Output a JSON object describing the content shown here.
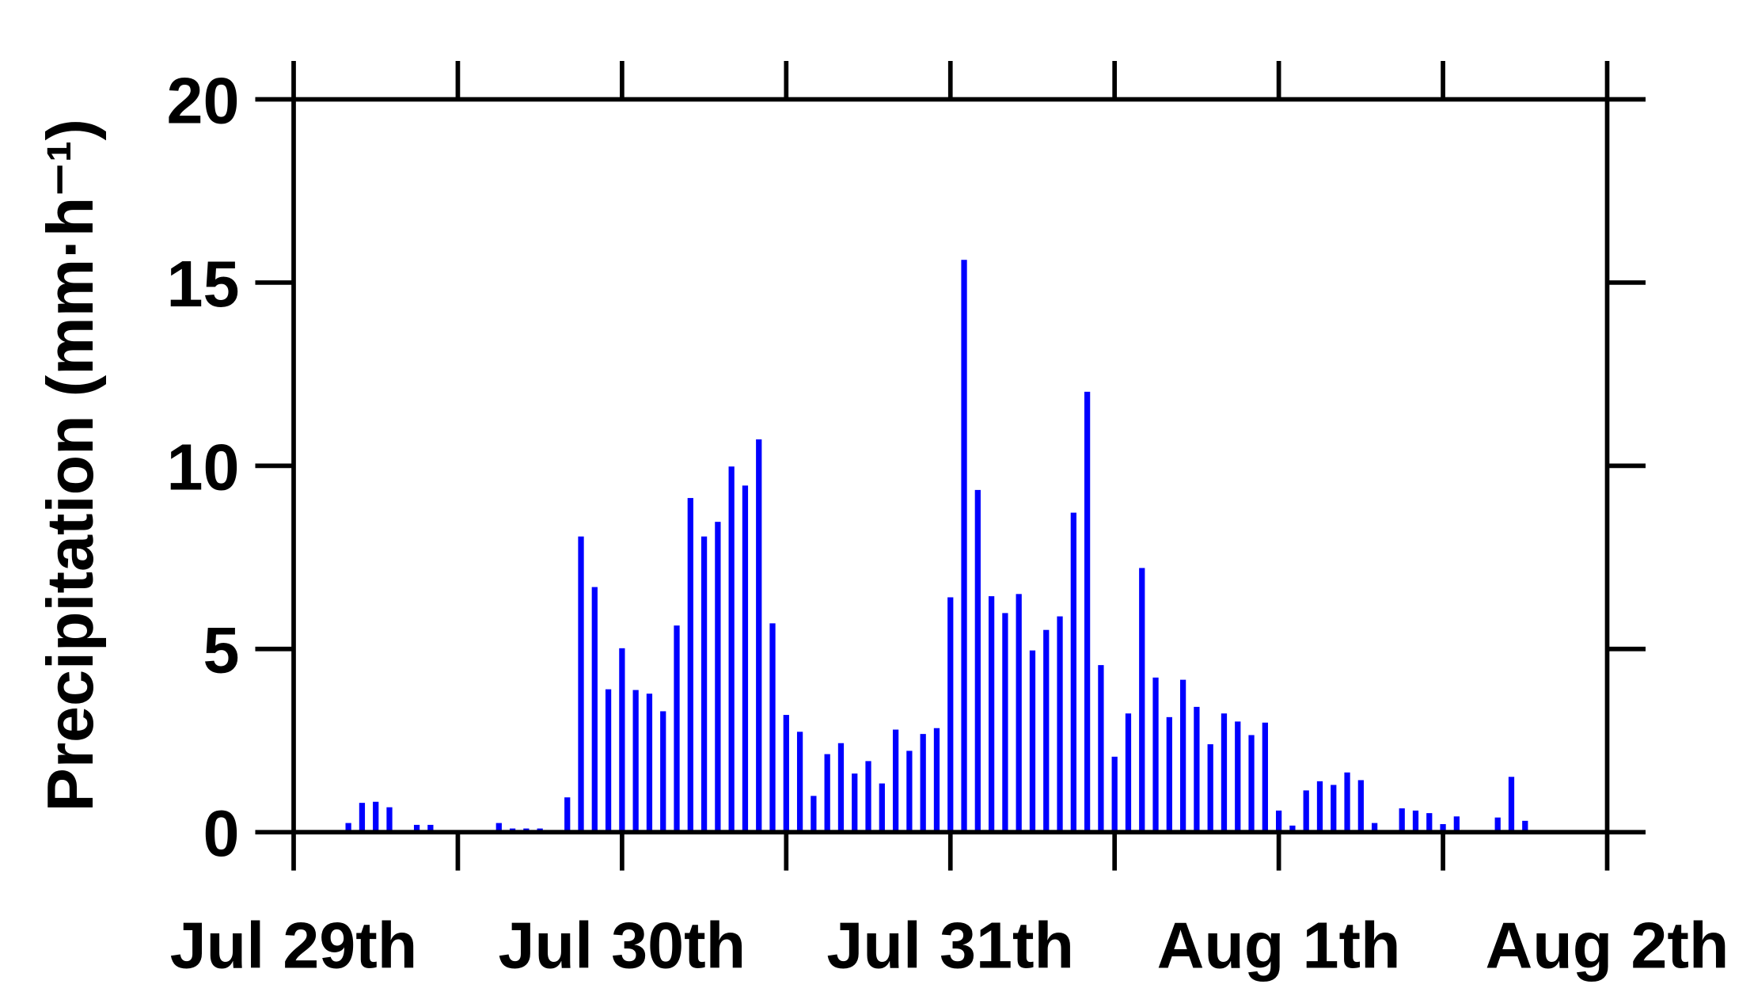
{
  "chart_data": {
    "type": "bar",
    "ylabel": "Precipitation (mm·h⁻¹)",
    "color": "#0000ff",
    "x": [
      4,
      5,
      6,
      7,
      9,
      10,
      13,
      15,
      16,
      17,
      18,
      19,
      20,
      21,
      22,
      23,
      24,
      25,
      26,
      27,
      28,
      29,
      30,
      31,
      32,
      33,
      34,
      35,
      36,
      37,
      38,
      39,
      40,
      41,
      42,
      43,
      44,
      45,
      46,
      47,
      48,
      49,
      50,
      51,
      52,
      53,
      54,
      55,
      56,
      57,
      58,
      59,
      60,
      61,
      62,
      63,
      64,
      65,
      66,
      67,
      68,
      69,
      70,
      71,
      72,
      73,
      74,
      75,
      76,
      77,
      78,
      79,
      81,
      82,
      83,
      84,
      85,
      88,
      89,
      90,
      94
    ],
    "values": [
      0.25,
      0.8,
      0.83,
      0.68,
      0.2,
      0.2,
      0.05,
      0.25,
      0.1,
      0.1,
      0.1,
      0.05,
      0.95,
      8.07,
      6.69,
      3.9,
      5.02,
      3.88,
      3.78,
      3.3,
      5.64,
      9.12,
      8.07,
      8.47,
      9.98,
      9.46,
      10.72,
      5.7,
      3.2,
      2.74,
      0.99,
      2.13,
      2.43,
      1.6,
      1.94,
      1.33,
      2.8,
      2.22,
      2.68,
      2.84,
      6.41,
      15.62,
      9.34,
      6.44,
      5.98,
      6.5,
      4.96,
      5.52,
      5.89,
      8.72,
      12.02,
      4.56,
      2.06,
      3.24,
      7.21,
      4.22,
      3.14,
      4.16,
      3.42,
      2.4,
      3.24,
      3.02,
      2.65,
      2.99,
      0.59,
      0.18,
      1.14,
      1.39,
      1.29,
      1.63,
      1.42,
      0.25,
      0.65,
      0.59,
      0.52,
      0.22,
      0.43,
      0.4,
      1.51,
      0.31,
      0.05
    ],
    "xlim": [
      0,
      96
    ],
    "xticks": [
      {
        "value": 0,
        "label": "Jul 29th"
      },
      {
        "value": 24,
        "label": "Jul 30th"
      },
      {
        "value": 48,
        "label": "Jul 31th"
      },
      {
        "value": 72,
        "label": "Aug 1th"
      },
      {
        "value": 96,
        "label": "Aug 2th"
      }
    ],
    "minor_xticks": [
      12,
      36,
      60,
      84
    ],
    "ylim": [
      0,
      20
    ],
    "yticks": [
      0,
      5,
      10,
      15,
      20
    ]
  }
}
